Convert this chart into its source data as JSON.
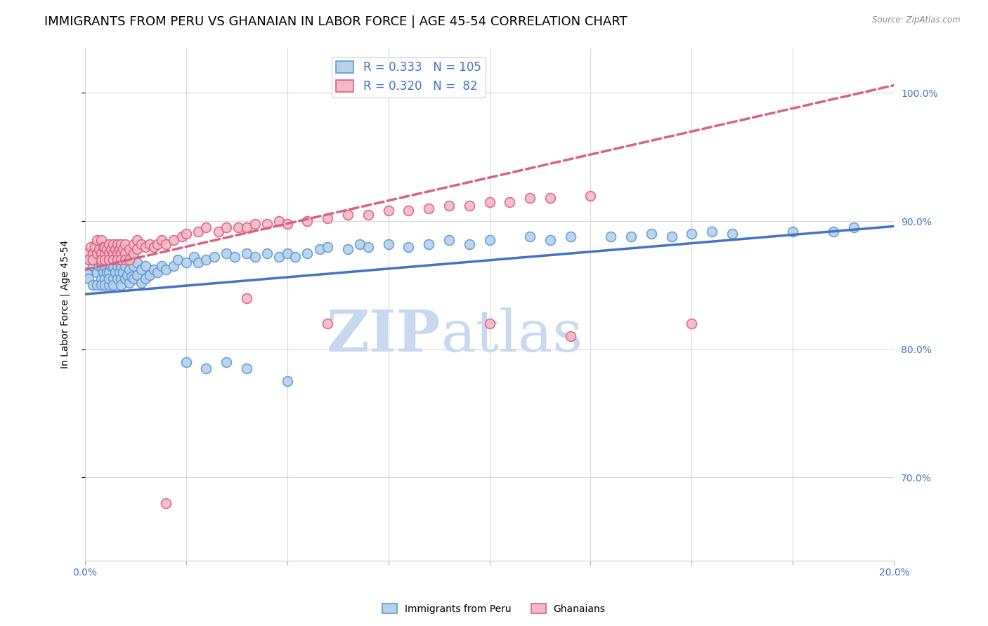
{
  "title": "IMMIGRANTS FROM PERU VS GHANAIAN IN LABOR FORCE | AGE 45-54 CORRELATION CHART",
  "source": "Source: ZipAtlas.com",
  "ylabel": "In Labor Force | Age 45-54",
  "xlim": [
    0.0,
    0.2
  ],
  "ylim": [
    0.635,
    1.035
  ],
  "right_yticks": [
    0.7,
    0.8,
    0.9,
    1.0
  ],
  "right_yticklabels": [
    "70.0%",
    "80.0%",
    "90.0%",
    "100.0%"
  ],
  "xticks": [
    0.0,
    0.025,
    0.05,
    0.075,
    0.1,
    0.125,
    0.15,
    0.175,
    0.2
  ],
  "xticklabels": [
    "0.0%",
    "",
    "",
    "",
    "",
    "",
    "",
    "",
    "20.0%"
  ],
  "peru_color": "#b8d0ea",
  "peru_edge_color": "#5b9bd5",
  "ghana_color": "#f4b8c8",
  "ghana_edge_color": "#d96080",
  "peru_R": 0.333,
  "peru_N": 105,
  "ghana_R": 0.32,
  "ghana_N": 82,
  "peru_line_color": "#4472c4",
  "ghana_line_color": "#d96080",
  "watermark_zip": "ZIP",
  "watermark_atlas": "atlas",
  "watermark_color": "#c8d8ee",
  "grid_color": "#d8d8d8",
  "title_fontsize": 13,
  "axis_label_fontsize": 10,
  "tick_fontsize": 10,
  "legend_fontsize": 12,
  "peru_scatter_x": [
    0.0005,
    0.001,
    0.0015,
    0.002,
    0.002,
    0.0025,
    0.003,
    0.003,
    0.003,
    0.0035,
    0.004,
    0.004,
    0.004,
    0.004,
    0.0045,
    0.005,
    0.005,
    0.005,
    0.005,
    0.0055,
    0.006,
    0.006,
    0.006,
    0.006,
    0.0065,
    0.007,
    0.007,
    0.007,
    0.007,
    0.0075,
    0.008,
    0.008,
    0.008,
    0.0085,
    0.009,
    0.009,
    0.009,
    0.009,
    0.0095,
    0.01,
    0.01,
    0.01,
    0.0105,
    0.011,
    0.011,
    0.011,
    0.0115,
    0.012,
    0.012,
    0.013,
    0.013,
    0.014,
    0.014,
    0.015,
    0.015,
    0.016,
    0.017,
    0.018,
    0.019,
    0.02,
    0.022,
    0.023,
    0.025,
    0.027,
    0.028,
    0.03,
    0.032,
    0.035,
    0.037,
    0.04,
    0.042,
    0.045,
    0.048,
    0.05,
    0.052,
    0.055,
    0.058,
    0.06,
    0.065,
    0.068,
    0.07,
    0.075,
    0.08,
    0.085,
    0.09,
    0.095,
    0.1,
    0.11,
    0.115,
    0.12,
    0.13,
    0.135,
    0.14,
    0.145,
    0.15,
    0.155,
    0.16,
    0.175,
    0.185,
    0.19,
    0.025,
    0.03,
    0.035,
    0.04,
    0.05
  ],
  "peru_scatter_y": [
    0.86,
    0.855,
    0.87,
    0.865,
    0.85,
    0.875,
    0.86,
    0.87,
    0.85,
    0.865,
    0.855,
    0.865,
    0.875,
    0.85,
    0.86,
    0.855,
    0.865,
    0.875,
    0.85,
    0.86,
    0.85,
    0.86,
    0.87,
    0.855,
    0.865,
    0.855,
    0.865,
    0.875,
    0.85,
    0.86,
    0.855,
    0.865,
    0.875,
    0.86,
    0.855,
    0.865,
    0.875,
    0.85,
    0.86,
    0.855,
    0.865,
    0.875,
    0.858,
    0.852,
    0.862,
    0.872,
    0.857,
    0.855,
    0.865,
    0.858,
    0.868,
    0.852,
    0.862,
    0.855,
    0.865,
    0.858,
    0.862,
    0.86,
    0.865,
    0.862,
    0.865,
    0.87,
    0.868,
    0.872,
    0.868,
    0.87,
    0.872,
    0.875,
    0.872,
    0.875,
    0.872,
    0.875,
    0.872,
    0.875,
    0.872,
    0.875,
    0.878,
    0.88,
    0.878,
    0.882,
    0.88,
    0.882,
    0.88,
    0.882,
    0.885,
    0.882,
    0.885,
    0.888,
    0.885,
    0.888,
    0.888,
    0.888,
    0.89,
    0.888,
    0.89,
    0.892,
    0.89,
    0.892,
    0.892,
    0.895,
    0.79,
    0.785,
    0.79,
    0.785,
    0.775
  ],
  "ghana_scatter_x": [
    0.0005,
    0.001,
    0.0015,
    0.002,
    0.002,
    0.0025,
    0.003,
    0.003,
    0.0035,
    0.004,
    0.004,
    0.004,
    0.0045,
    0.005,
    0.005,
    0.005,
    0.0055,
    0.006,
    0.006,
    0.006,
    0.0065,
    0.007,
    0.007,
    0.007,
    0.0075,
    0.008,
    0.008,
    0.008,
    0.0085,
    0.009,
    0.009,
    0.009,
    0.0095,
    0.01,
    0.01,
    0.01,
    0.011,
    0.011,
    0.012,
    0.012,
    0.013,
    0.013,
    0.014,
    0.015,
    0.016,
    0.017,
    0.018,
    0.019,
    0.02,
    0.022,
    0.024,
    0.025,
    0.028,
    0.03,
    0.033,
    0.035,
    0.038,
    0.04,
    0.042,
    0.045,
    0.048,
    0.05,
    0.055,
    0.06,
    0.065,
    0.07,
    0.075,
    0.08,
    0.085,
    0.09,
    0.095,
    0.1,
    0.105,
    0.11,
    0.115,
    0.125,
    0.04,
    0.06,
    0.1,
    0.12,
    0.15,
    0.02
  ],
  "ghana_scatter_y": [
    0.875,
    0.87,
    0.88,
    0.875,
    0.87,
    0.88,
    0.875,
    0.885,
    0.878,
    0.875,
    0.885,
    0.87,
    0.88,
    0.875,
    0.88,
    0.87,
    0.878,
    0.875,
    0.882,
    0.87,
    0.878,
    0.875,
    0.882,
    0.87,
    0.878,
    0.875,
    0.882,
    0.87,
    0.878,
    0.875,
    0.882,
    0.87,
    0.878,
    0.875,
    0.882,
    0.87,
    0.878,
    0.87,
    0.875,
    0.882,
    0.878,
    0.885,
    0.882,
    0.88,
    0.882,
    0.88,
    0.882,
    0.885,
    0.882,
    0.885,
    0.888,
    0.89,
    0.892,
    0.895,
    0.892,
    0.895,
    0.895,
    0.895,
    0.898,
    0.898,
    0.9,
    0.898,
    0.9,
    0.902,
    0.905,
    0.905,
    0.908,
    0.908,
    0.91,
    0.912,
    0.912,
    0.915,
    0.915,
    0.918,
    0.918,
    0.92,
    0.84,
    0.82,
    0.82,
    0.81,
    0.82,
    0.68
  ],
  "peru_line_intercept": 0.843,
  "peru_line_slope": 0.265,
  "ghana_line_intercept": 0.862,
  "ghana_line_slope": 0.72
}
